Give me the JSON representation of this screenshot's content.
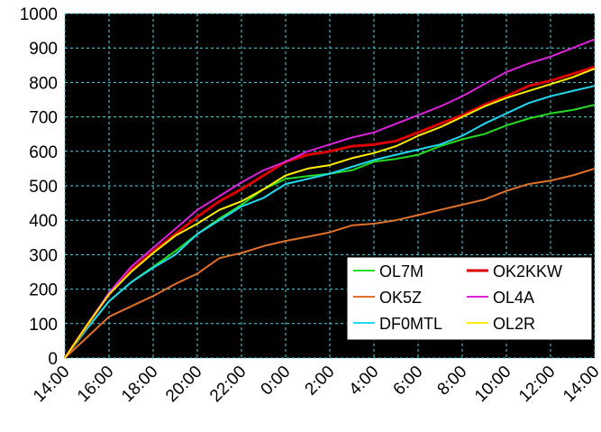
{
  "chart_data": {
    "type": "line",
    "title": "",
    "xlabel": "",
    "ylabel": "",
    "ylim": [
      0,
      1000
    ],
    "yticks": [
      "0",
      "100",
      "200",
      "300",
      "400",
      "500",
      "600",
      "700",
      "800",
      "900",
      "1000"
    ],
    "categories": [
      "14:00",
      "15:00",
      "16:00",
      "17:00",
      "18:00",
      "19:00",
      "20:00",
      "21:00",
      "22:00",
      "23:00",
      "0:00",
      "1:00",
      "2:00",
      "3:00",
      "4:00",
      "5:00",
      "6:00",
      "7:00",
      "8:00",
      "9:00",
      "10:00",
      "11:00",
      "12:00",
      "13:00",
      "14:00"
    ],
    "xtick_labels": [
      "14:00",
      "16:00",
      "18:00",
      "20:00",
      "22:00",
      "0:00",
      "2:00",
      "4:00",
      "6:00",
      "8:00",
      "10:00",
      "12:00",
      "14:00"
    ],
    "grid": true,
    "legend_position": "bottom-right",
    "background": "#000000",
    "series": [
      {
        "name": "OL7M",
        "color": "#22dd22",
        "values": [
          0,
          85,
          165,
          220,
          265,
          310,
          360,
          405,
          445,
          490,
          520,
          528,
          535,
          545,
          570,
          578,
          590,
          615,
          635,
          650,
          675,
          695,
          710,
          720,
          735
        ]
      },
      {
        "name": "OK5Z",
        "color": "#e0702a",
        "values": [
          0,
          60,
          120,
          150,
          180,
          215,
          245,
          290,
          305,
          325,
          340,
          352,
          365,
          385,
          390,
          400,
          415,
          430,
          445,
          460,
          485,
          505,
          515,
          530,
          550
        ]
      },
      {
        "name": "DF0MTL",
        "color": "#22d8f0",
        "values": [
          0,
          85,
          165,
          220,
          262,
          300,
          360,
          400,
          440,
          465,
          505,
          520,
          535,
          555,
          575,
          590,
          605,
          620,
          645,
          680,
          710,
          740,
          760,
          775,
          790
        ]
      },
      {
        "name": "OK2KKW",
        "color": "#dd0000",
        "values": [
          0,
          95,
          185,
          255,
          310,
          360,
          410,
          455,
          490,
          530,
          570,
          590,
          600,
          615,
          620,
          630,
          655,
          680,
          705,
          735,
          760,
          790,
          805,
          825,
          845
        ]
      },
      {
        "name": "OL4A",
        "color": "#dd22dd",
        "values": [
          0,
          95,
          190,
          265,
          320,
          375,
          430,
          470,
          510,
          545,
          570,
          600,
          620,
          640,
          655,
          680,
          705,
          730,
          760,
          795,
          830,
          855,
          875,
          900,
          925
        ]
      },
      {
        "name": "OL2R",
        "color": "#ffee00",
        "values": [
          0,
          95,
          185,
          250,
          305,
          355,
          390,
          430,
          455,
          490,
          530,
          550,
          560,
          580,
          595,
          615,
          645,
          670,
          700,
          730,
          755,
          775,
          795,
          815,
          840
        ]
      }
    ]
  }
}
